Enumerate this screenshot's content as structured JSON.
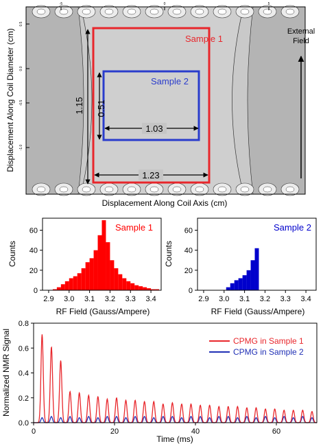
{
  "chart_data": [
    {
      "type": "heatmap",
      "xlabel": "Displacement Along Coil Axis (cm)",
      "ylabel": "Displacement Along Coil Diameter (cm)",
      "top_tick_labels": [
        "-5",
        "0",
        "5"
      ],
      "left_tick_labels": [
        "0.5",
        "0.0",
        "-0.5",
        "-1.0"
      ],
      "annotations": {
        "external_field": "External\nField",
        "sample1_label": "Sample 1",
        "sample2_label": "Sample 2",
        "dim_1_15": "1.15",
        "dim_0_51": "0.51",
        "dim_1_03": "1.03",
        "dim_1_23": "1.23"
      },
      "colors": {
        "sample1": "#e8262b",
        "sample2": "#2a3ccc"
      }
    },
    {
      "type": "bar",
      "title": "Sample 1",
      "xlabel": "RF Field (Gauss/Ampere)",
      "ylabel": "Counts",
      "xlim": [
        2.87,
        3.45
      ],
      "ylim": [
        0,
        72
      ],
      "xticks": [
        2.9,
        3.0,
        3.1,
        3.2,
        3.3,
        3.4
      ],
      "yticks": [
        0,
        20,
        40,
        60
      ],
      "color": "#ff0000",
      "x": [
        2.93,
        2.95,
        2.97,
        2.99,
        3.01,
        3.03,
        3.05,
        3.07,
        3.09,
        3.11,
        3.13,
        3.15,
        3.17,
        3.19,
        3.21,
        3.23,
        3.25,
        3.27,
        3.29,
        3.31,
        3.33,
        3.35,
        3.37,
        3.39,
        3.41,
        3.43
      ],
      "values": [
        1,
        3,
        6,
        9,
        12,
        14,
        17,
        22,
        28,
        32,
        40,
        55,
        70,
        48,
        30,
        22,
        16,
        12,
        9,
        7,
        5,
        4,
        3,
        2,
        1,
        1
      ]
    },
    {
      "type": "bar",
      "title": "Sample 2",
      "xlabel": "RF Field (Gauss/Ampere)",
      "ylabel": "Counts",
      "xlim": [
        2.87,
        3.45
      ],
      "ylim": [
        0,
        72
      ],
      "xticks": [
        2.9,
        3.0,
        3.1,
        3.2,
        3.3,
        3.4
      ],
      "yticks": [
        0,
        20,
        40,
        60
      ],
      "color": "#0000cc",
      "x": [
        3.02,
        3.04,
        3.06,
        3.08,
        3.1,
        3.12,
        3.14,
        3.16
      ],
      "values": [
        3,
        7,
        10,
        12,
        15,
        20,
        30,
        42
      ]
    },
    {
      "type": "line",
      "ylabel": "Normalized NMR Signal",
      "xlabel": "Time (ms)",
      "xlim": [
        0,
        70
      ],
      "ylim": [
        0,
        0.8
      ],
      "xticks": [
        0,
        20,
        40,
        60
      ],
      "yticks": [
        0.0,
        0.2,
        0.4,
        0.6,
        0.8
      ],
      "echo_times": [
        2.1,
        4.4,
        6.7,
        9.0,
        11.3,
        13.6,
        15.9,
        18.2,
        20.5,
        22.8,
        25.1,
        27.4,
        29.7,
        32.0,
        34.3,
        36.6,
        38.9,
        41.2,
        43.5,
        45.8,
        48.1,
        50.4,
        52.7,
        55.0,
        57.3,
        59.6,
        61.9,
        64.2,
        66.5,
        68.8
      ],
      "series": [
        {
          "name": "CPMG in Sample 1",
          "color": "#e8262b",
          "values": [
            0.71,
            0.61,
            0.5,
            0.25,
            0.24,
            0.22,
            0.21,
            0.19,
            0.2,
            0.18,
            0.18,
            0.17,
            0.17,
            0.15,
            0.16,
            0.15,
            0.15,
            0.14,
            0.14,
            0.13,
            0.13,
            0.13,
            0.12,
            0.12,
            0.11,
            0.11,
            0.1,
            0.1,
            0.1,
            0.09
          ]
        },
        {
          "name": "CPMG in Sample 2",
          "color": "#1f2fb5",
          "values": [
            0.04,
            0.05,
            0.04,
            0.05,
            0.04,
            0.05,
            0.04,
            0.05,
            0.05,
            0.04,
            0.05,
            0.05,
            0.04,
            0.05,
            0.05,
            0.04,
            0.05,
            0.05,
            0.04,
            0.05,
            0.05,
            0.04,
            0.05,
            0.04,
            0.05,
            0.04,
            0.05,
            0.04,
            0.05,
            0.04
          ]
        }
      ]
    }
  ]
}
